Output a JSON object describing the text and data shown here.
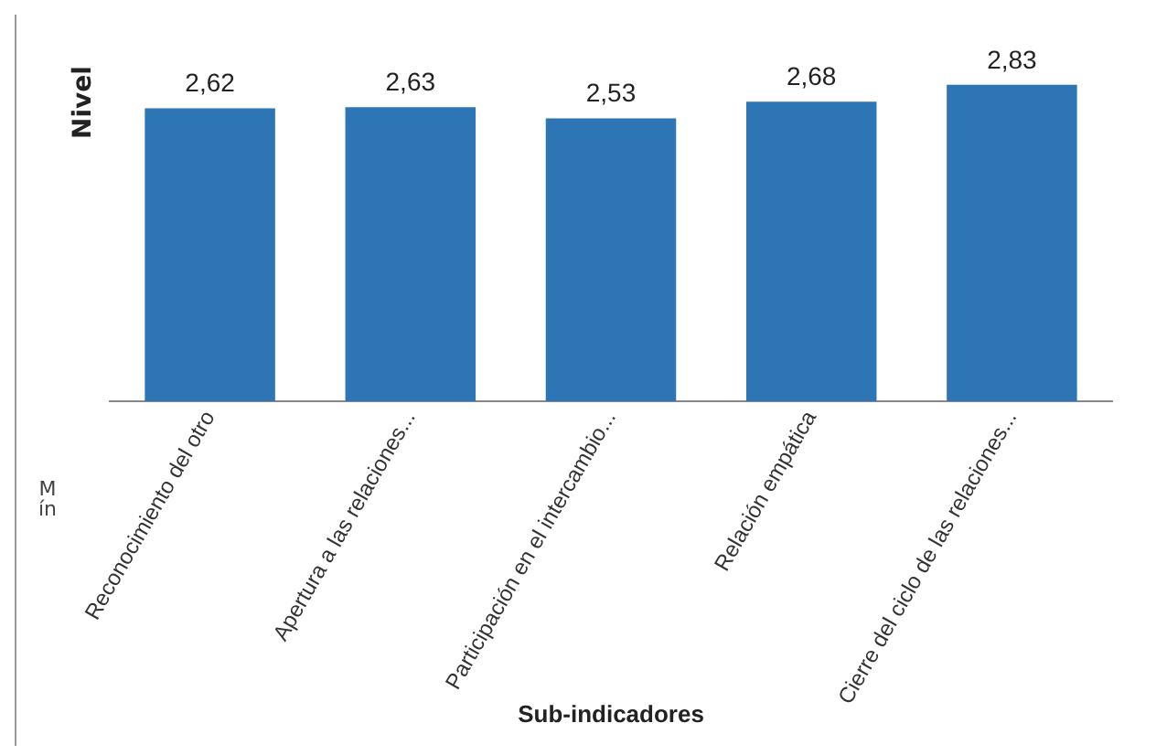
{
  "chart_data": {
    "type": "bar",
    "ylabel": "Nivel",
    "xlabel": "Sub-indicadores",
    "categories": [
      "Reconocimiento del otro",
      "Apertura a las relaciones...",
      "Participación en el intercambio...",
      "Relación empática",
      "Cierre del ciclo de las relaciones..."
    ],
    "values": [
      2.62,
      2.63,
      2.53,
      2.68,
      2.83
    ],
    "value_labels": [
      "2,62",
      "2,63",
      "2,53",
      "2,68",
      "2,83"
    ],
    "color": "#2e75b6",
    "annotations": [
      "Mín"
    ]
  }
}
